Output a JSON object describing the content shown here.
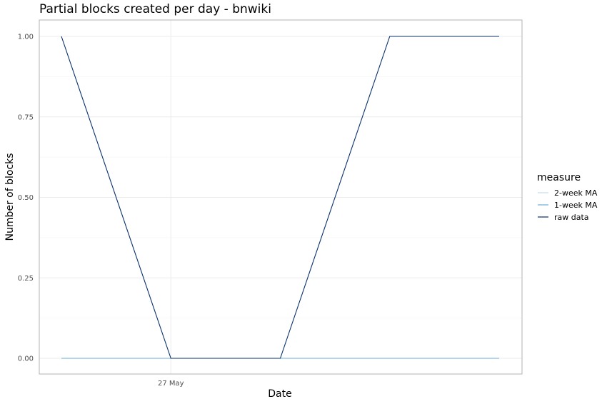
{
  "chart_data": {
    "type": "line",
    "title": "Partial blocks created per day - bnwiki",
    "xlabel": "Date",
    "ylabel": "Number of blocks",
    "x": [
      "2020-05-26",
      "2020-05-27",
      "2020-05-28",
      "2020-05-29",
      "2020-05-30"
    ],
    "x_ticks": [
      {
        "value": "2020-05-27",
        "label": "27 May"
      }
    ],
    "ylim": [
      0,
      1
    ],
    "y_ticks": [
      0,
      0.25,
      0.5,
      0.75,
      1.0
    ],
    "y_tick_labels": [
      "0.00",
      "0.25",
      "0.50",
      "0.75",
      "1.00"
    ],
    "grid": true,
    "legend": {
      "title": "measure",
      "placement": "right",
      "entries": [
        "2-week MA",
        "1-week MA",
        "raw data"
      ]
    },
    "series": [
      {
        "name": "2-week MA",
        "color": "#c6dbef",
        "values": [
          0,
          0,
          0,
          0,
          0
        ]
      },
      {
        "name": "1-week MA",
        "color": "#6baed6",
        "values": [
          0,
          0,
          0,
          0,
          0
        ]
      },
      {
        "name": "raw data",
        "color": "#08306b",
        "values": [
          1,
          0,
          0,
          1,
          1
        ]
      }
    ]
  }
}
